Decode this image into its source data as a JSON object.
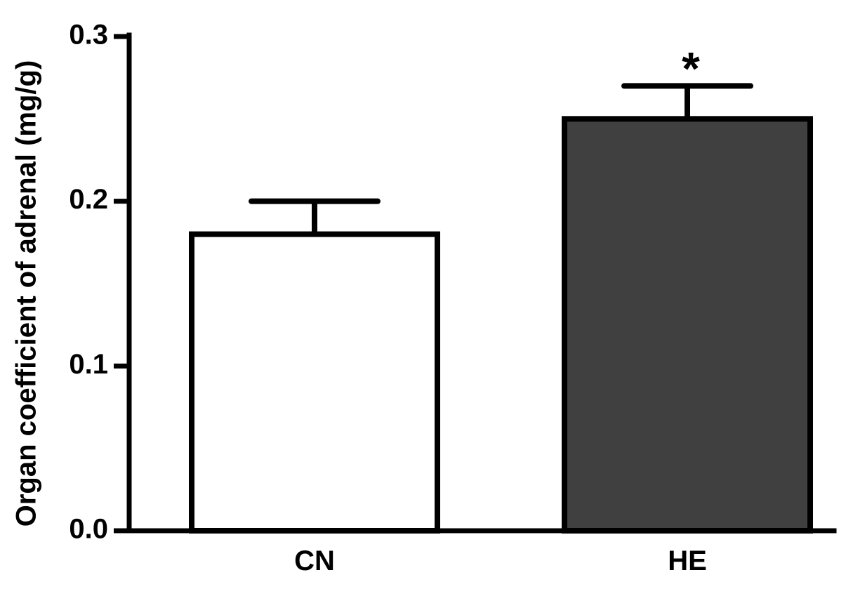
{
  "chart_data": {
    "type": "bar",
    "title": "",
    "xlabel": "",
    "ylabel": "Organ coefficient of adrenal (mg/g)",
    "categories": [
      "CN",
      "HE"
    ],
    "values": [
      0.18,
      0.25
    ],
    "error_upper": [
      0.02,
      0.02
    ],
    "bar_colors": [
      "#ffffff",
      "#404040"
    ],
    "edge_color": "#000000",
    "annotations": [
      "",
      "*"
    ],
    "ylim": [
      0,
      0.3
    ],
    "yticks": [
      0.0,
      0.1,
      0.2,
      0.3
    ],
    "ytick_labels": [
      "0.0",
      "0.1",
      "0.2",
      "0.3"
    ],
    "grid": false,
    "legend": "none"
  }
}
